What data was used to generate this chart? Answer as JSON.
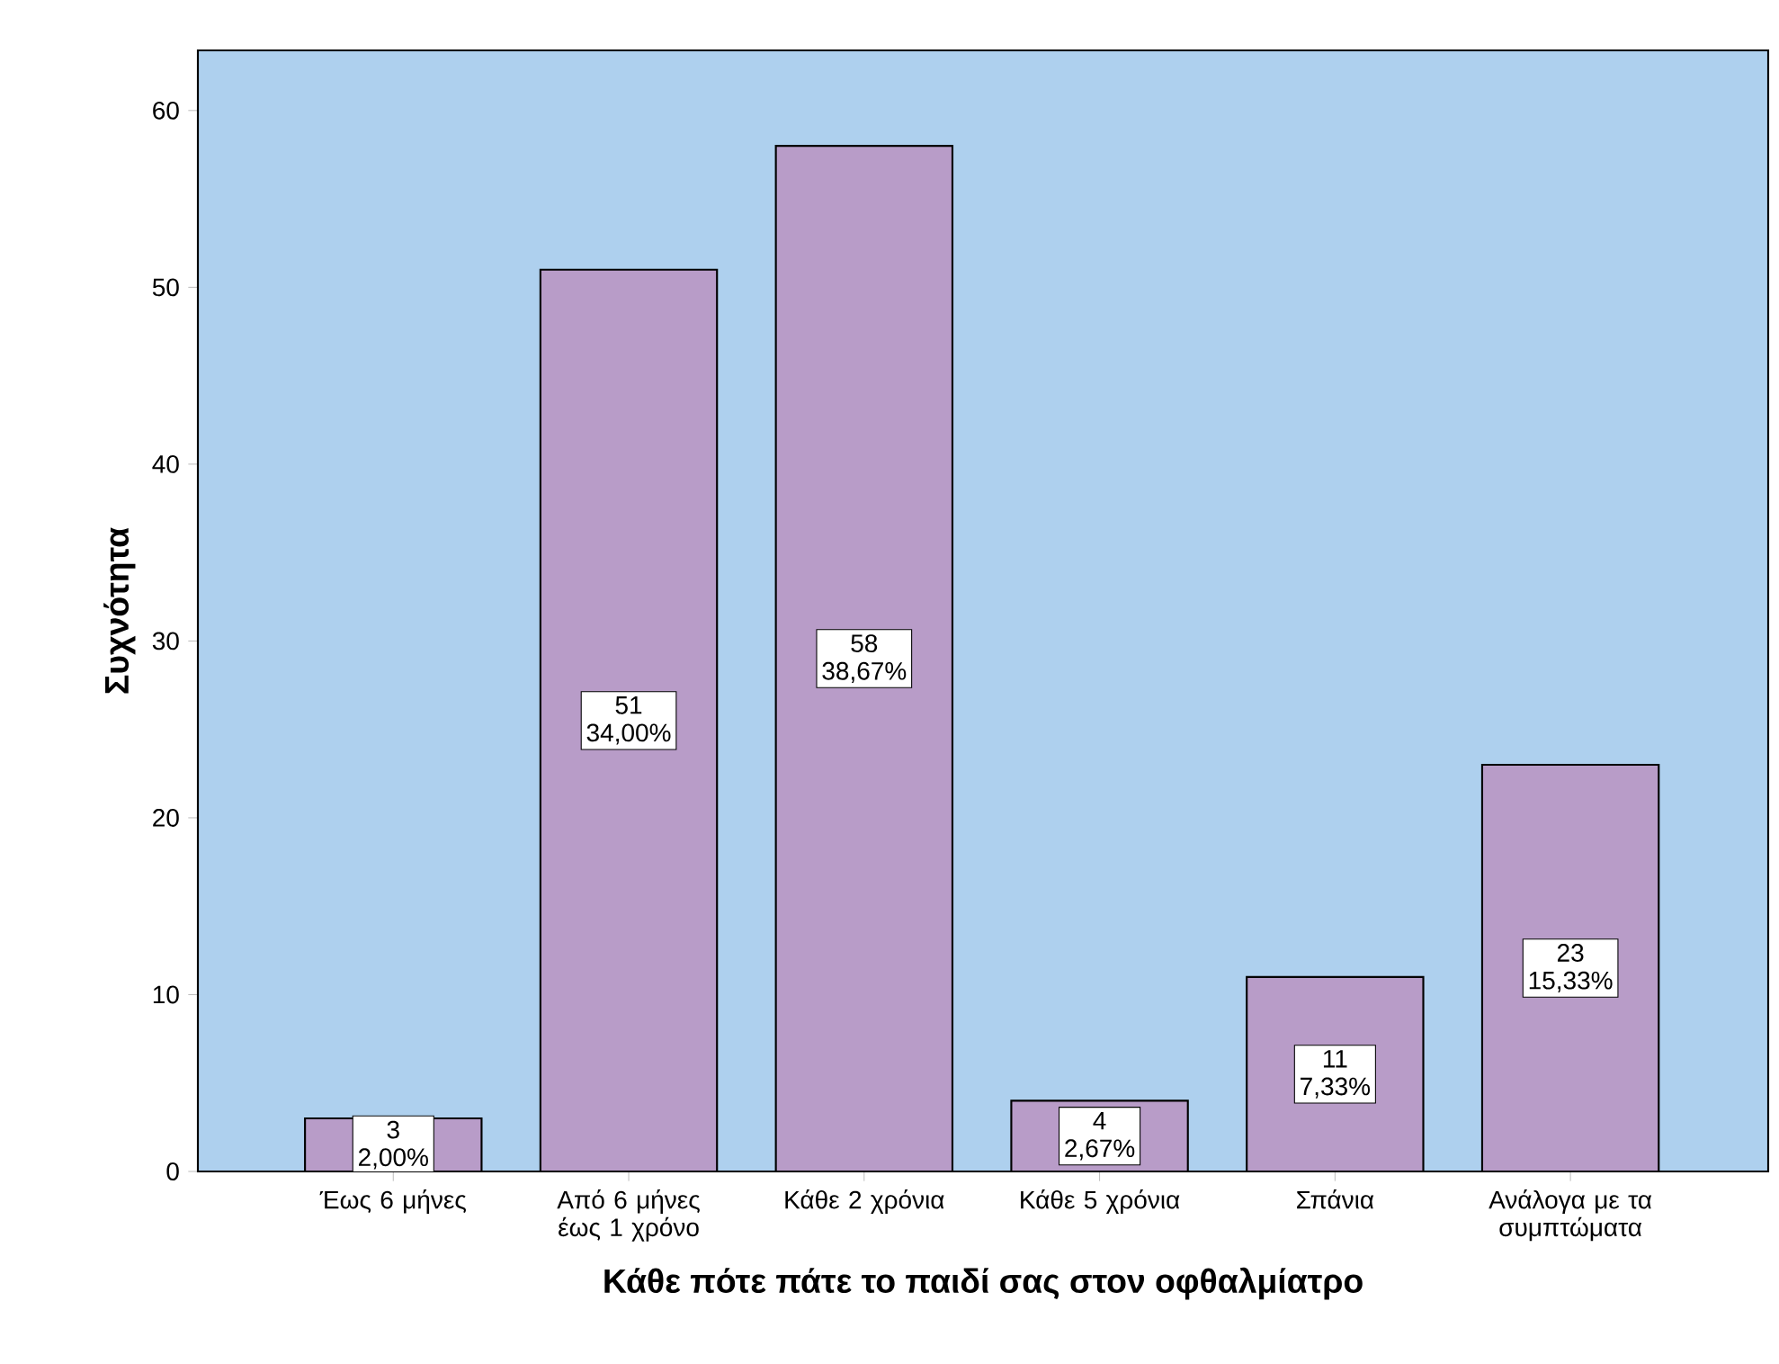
{
  "chart_data": {
    "type": "bar",
    "xlabel": "Κάθε πότε πάτε το παιδί σας στον οφθαλμίατρο",
    "ylabel": "Συχνότητα",
    "categories": [
      "Έως 6 μήνες",
      "Από 6 μήνες έως 1 χρόνο",
      "Κάθε 2 χρόνια",
      "Κάθε 5 χρόνια",
      "Σπάνια",
      "Ανάλογα με τα συμπτώματα"
    ],
    "values": [
      3,
      51,
      58,
      4,
      11,
      23
    ],
    "color": "#b89cc8",
    "data_labels": true,
    "annotations": [
      "2,00%",
      "34,00%",
      "38,67%",
      "2,67%",
      "7,33%",
      "15,33%"
    ],
    "ylim": [
      0,
      63.4
    ],
    "yticks": [
      0,
      10,
      20,
      30,
      40,
      50,
      60
    ],
    "grid": false
  }
}
